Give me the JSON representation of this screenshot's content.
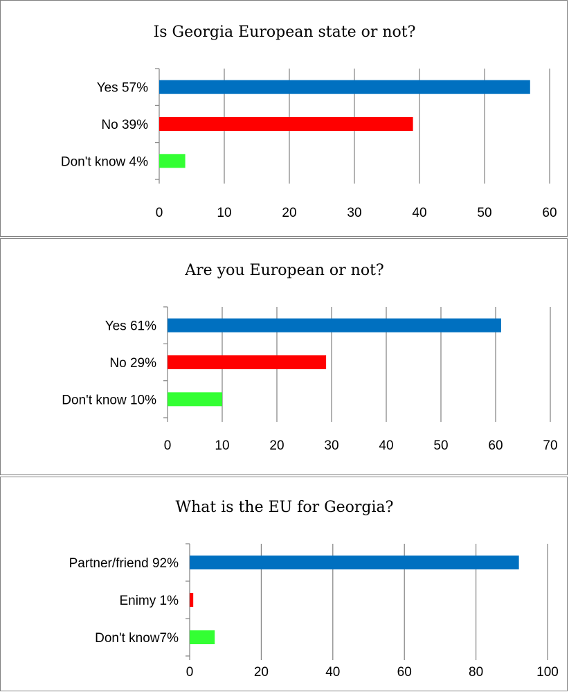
{
  "chart_data": [
    {
      "type": "bar",
      "title": "Is Georgia European state or not?",
      "categories": [
        "Yes 57%",
        "No 39%",
        "Don't know 4%"
      ],
      "values": [
        57,
        39,
        4
      ],
      "colors": [
        "#0070c0",
        "#ff0000",
        "#33ff33"
      ],
      "xlim": [
        0,
        60
      ],
      "ticks": [
        "0",
        "10",
        "20",
        "30",
        "40",
        "50",
        "60"
      ],
      "tick_values": [
        0,
        10,
        20,
        30,
        40,
        50,
        60
      ],
      "grid": true
    },
    {
      "type": "bar",
      "title": "Are you European or not?",
      "categories": [
        "Yes 61%",
        "No 29%",
        "Don't know 10%"
      ],
      "values": [
        61,
        29,
        10
      ],
      "colors": [
        "#0070c0",
        "#ff0000",
        "#33ff33"
      ],
      "xlim": [
        0,
        70
      ],
      "ticks": [
        "0",
        "10",
        "20",
        "30",
        "40",
        "50",
        "60",
        "70"
      ],
      "tick_values": [
        0,
        10,
        20,
        30,
        40,
        50,
        60,
        70
      ],
      "grid": true
    },
    {
      "type": "bar",
      "title": "What is the EU for Georgia?",
      "categories": [
        "Partner/friend 92%",
        "Enimy 1%",
        "Don't know7%"
      ],
      "values": [
        92,
        1,
        7
      ],
      "colors": [
        "#0070c0",
        "#ff0000",
        "#33ff33"
      ],
      "xlim": [
        0,
        100
      ],
      "ticks": [
        "0",
        "20",
        "40",
        "60",
        "80",
        "100"
      ],
      "tick_values": [
        0,
        20,
        40,
        60,
        80,
        100
      ],
      "grid": true
    }
  ]
}
